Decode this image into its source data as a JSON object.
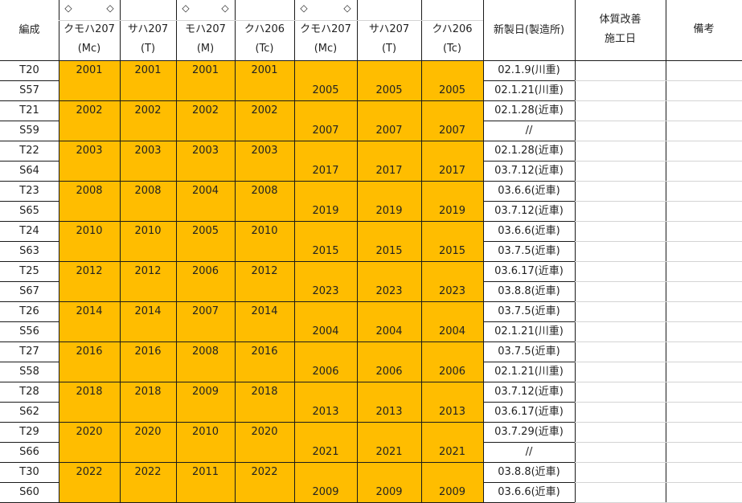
{
  "colors": {
    "highlight": "#ffbd00",
    "grid": "#1a1a1a",
    "subgrid": "#d4d4d4"
  },
  "header": {
    "formation": "編成",
    "cars": [
      {
        "marks": [
          "◇",
          "◇"
        ],
        "name": "クモハ207",
        "type": "(Mc)"
      },
      {
        "marks": [],
        "name": "サハ207",
        "type": "(T)"
      },
      {
        "marks": [
          "◇",
          "◇"
        ],
        "name": "モハ207",
        "type": "(M)"
      },
      {
        "marks": [],
        "name": "クハ206",
        "type": "(Tc)"
      },
      {
        "marks": [
          "◇",
          "◇"
        ],
        "name": "クモハ207",
        "type": "(Mc)"
      },
      {
        "marks": [],
        "name": "サハ207",
        "type": "(T)"
      },
      {
        "marks": [],
        "name": "クハ206",
        "type": "(Tc)"
      }
    ],
    "built": "新製日(製造所)",
    "renewal_line1": "体質改善",
    "renewal_line2": "施工日",
    "notes": "備考"
  },
  "units": [
    {
      "t": "T20",
      "s": "S57",
      "t4": [
        "2001",
        "2001",
        "2001",
        "2001"
      ],
      "s3": [
        "2005",
        "2005",
        "2005"
      ],
      "dates": [
        "02.1.9(川重)",
        "02.1.21(川重)"
      ]
    },
    {
      "t": "T21",
      "s": "S59",
      "t4": [
        "2002",
        "2002",
        "2002",
        "2002"
      ],
      "s3": [
        "2007",
        "2007",
        "2007"
      ],
      "dates": [
        "02.1.28(近車)",
        "//"
      ]
    },
    {
      "t": "T22",
      "s": "S64",
      "t4": [
        "2003",
        "2003",
        "2003",
        "2003"
      ],
      "s3": [
        "2017",
        "2017",
        "2017"
      ],
      "dates": [
        "02.1.28(近車)",
        "03.7.12(近車)"
      ]
    },
    {
      "t": "T23",
      "s": "S65",
      "t4": [
        "2008",
        "2008",
        "2004",
        "2008"
      ],
      "s3": [
        "2019",
        "2019",
        "2019"
      ],
      "dates": [
        "03.6.6(近車)",
        "03.7.12(近車)"
      ]
    },
    {
      "t": "T24",
      "s": "S63",
      "t4": [
        "2010",
        "2010",
        "2005",
        "2010"
      ],
      "s3": [
        "2015",
        "2015",
        "2015"
      ],
      "dates": [
        "03.6.6(近車)",
        "03.7.5(近車)"
      ]
    },
    {
      "t": "T25",
      "s": "S67",
      "t4": [
        "2012",
        "2012",
        "2006",
        "2012"
      ],
      "s3": [
        "2023",
        "2023",
        "2023"
      ],
      "dates": [
        "03.6.17(近車)",
        "03.8.8(近車)"
      ]
    },
    {
      "t": "T26",
      "s": "S56",
      "t4": [
        "2014",
        "2014",
        "2007",
        "2014"
      ],
      "s3": [
        "2004",
        "2004",
        "2004"
      ],
      "dates": [
        "03.7.5(近車)",
        "02.1.21(川重)"
      ]
    },
    {
      "t": "T27",
      "s": "S58",
      "t4": [
        "2016",
        "2016",
        "2008",
        "2016"
      ],
      "s3": [
        "2006",
        "2006",
        "2006"
      ],
      "dates": [
        "03.7.5(近車)",
        "02.1.21(川重)"
      ]
    },
    {
      "t": "T28",
      "s": "S62",
      "t4": [
        "2018",
        "2018",
        "2009",
        "2018"
      ],
      "s3": [
        "2013",
        "2013",
        "2013"
      ],
      "dates": [
        "03.7.12(近車)",
        "03.6.17(近車)"
      ]
    },
    {
      "t": "T29",
      "s": "S66",
      "t4": [
        "2020",
        "2020",
        "2010",
        "2020"
      ],
      "s3": [
        "2021",
        "2021",
        "2021"
      ],
      "dates": [
        "03.7.29(近車)",
        "//"
      ]
    },
    {
      "t": "T30",
      "s": "S60",
      "t4": [
        "2022",
        "2022",
        "2011",
        "2022"
      ],
      "s3": [
        "2009",
        "2009",
        "2009"
      ],
      "dates": [
        "03.8.8(近車)",
        "03.6.6(近車)"
      ]
    }
  ]
}
